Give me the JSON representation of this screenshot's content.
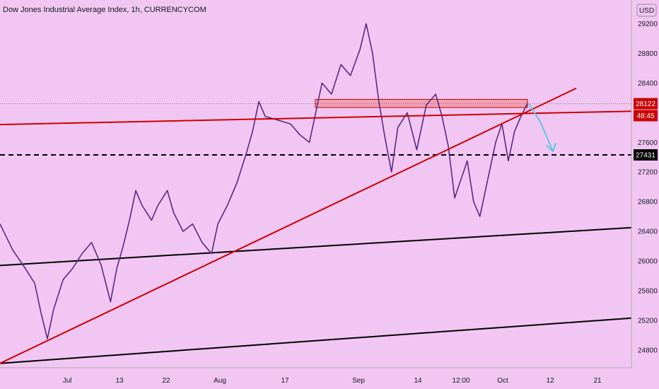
{
  "chart_data": {
    "type": "line",
    "title": "Dow Jones Industrial Average Index, 1h, CURRENCYCOM",
    "currency_label": "USD",
    "colors": {
      "background": "#f2c6f2",
      "price": "#5a2a82",
      "trendline": "#cc0000",
      "channel": "#000000",
      "zone_fill": "#f08080",
      "arrow": "#5bc8e8",
      "axis_border": "#aaaaaa"
    },
    "ylim": [
      24560,
      29520
    ],
    "y_ticks": [
      "29200",
      "28800",
      "28400",
      "28000",
      "27600",
      "27200",
      "26800",
      "26400",
      "26000",
      "25600",
      "25200",
      "24800"
    ],
    "x_ticks": [
      "Jul",
      "13",
      "22",
      "Aug",
      "17",
      "Sep",
      "14",
      "12:00",
      "Oct",
      "12",
      "21"
    ],
    "price_labels": [
      {
        "id": "current",
        "text": "28122",
        "value": 28122,
        "color": "#cc0000",
        "text_color": "#ffffff"
      },
      {
        "id": "countdown",
        "text": "48:45",
        "value": 27960,
        "color": "#cc0000",
        "text_color": "#ffffff"
      },
      {
        "id": "target",
        "text": "27431",
        "value": 27431,
        "color": "#000000",
        "text_color": "#ffffff"
      }
    ],
    "price_series": [
      {
        "x": 0.0,
        "y": 26500
      },
      {
        "x": 0.02,
        "y": 26150
      },
      {
        "x": 0.04,
        "y": 25900
      },
      {
        "x": 0.055,
        "y": 25700
      },
      {
        "x": 0.065,
        "y": 25300
      },
      {
        "x": 0.075,
        "y": 24950
      },
      {
        "x": 0.085,
        "y": 25350
      },
      {
        "x": 0.1,
        "y": 25750
      },
      {
        "x": 0.115,
        "y": 25900
      },
      {
        "x": 0.13,
        "y": 26100
      },
      {
        "x": 0.145,
        "y": 26250
      },
      {
        "x": 0.16,
        "y": 25950
      },
      {
        "x": 0.175,
        "y": 25450
      },
      {
        "x": 0.185,
        "y": 25900
      },
      {
        "x": 0.195,
        "y": 26200
      },
      {
        "x": 0.205,
        "y": 26550
      },
      {
        "x": 0.215,
        "y": 26950
      },
      {
        "x": 0.225,
        "y": 26750
      },
      {
        "x": 0.24,
        "y": 26550
      },
      {
        "x": 0.25,
        "y": 26750
      },
      {
        "x": 0.265,
        "y": 26950
      },
      {
        "x": 0.275,
        "y": 26650
      },
      {
        "x": 0.29,
        "y": 26400
      },
      {
        "x": 0.305,
        "y": 26500
      },
      {
        "x": 0.32,
        "y": 26250
      },
      {
        "x": 0.335,
        "y": 26100
      },
      {
        "x": 0.345,
        "y": 26500
      },
      {
        "x": 0.36,
        "y": 26750
      },
      {
        "x": 0.375,
        "y": 27050
      },
      {
        "x": 0.39,
        "y": 27450
      },
      {
        "x": 0.4,
        "y": 27750
      },
      {
        "x": 0.41,
        "y": 28150
      },
      {
        "x": 0.42,
        "y": 27950
      },
      {
        "x": 0.44,
        "y": 27900
      },
      {
        "x": 0.46,
        "y": 27850
      },
      {
        "x": 0.475,
        "y": 27700
      },
      {
        "x": 0.49,
        "y": 27600
      },
      {
        "x": 0.5,
        "y": 28000
      },
      {
        "x": 0.51,
        "y": 28400
      },
      {
        "x": 0.525,
        "y": 28250
      },
      {
        "x": 0.54,
        "y": 28650
      },
      {
        "x": 0.555,
        "y": 28500
      },
      {
        "x": 0.57,
        "y": 28850
      },
      {
        "x": 0.58,
        "y": 29200
      },
      {
        "x": 0.59,
        "y": 28800
      },
      {
        "x": 0.6,
        "y": 28150
      },
      {
        "x": 0.61,
        "y": 27650
      },
      {
        "x": 0.62,
        "y": 27200
      },
      {
        "x": 0.63,
        "y": 27800
      },
      {
        "x": 0.645,
        "y": 28000
      },
      {
        "x": 0.66,
        "y": 27500
      },
      {
        "x": 0.675,
        "y": 28100
      },
      {
        "x": 0.69,
        "y": 28250
      },
      {
        "x": 0.7,
        "y": 27950
      },
      {
        "x": 0.71,
        "y": 27550
      },
      {
        "x": 0.72,
        "y": 26850
      },
      {
        "x": 0.73,
        "y": 27100
      },
      {
        "x": 0.74,
        "y": 27350
      },
      {
        "x": 0.75,
        "y": 26800
      },
      {
        "x": 0.76,
        "y": 26600
      },
      {
        "x": 0.77,
        "y": 27000
      },
      {
        "x": 0.785,
        "y": 27600
      },
      {
        "x": 0.795,
        "y": 27850
      },
      {
        "x": 0.805,
        "y": 27350
      },
      {
        "x": 0.815,
        "y": 27750
      },
      {
        "x": 0.825,
        "y": 27950
      },
      {
        "x": 0.835,
        "y": 28122
      }
    ]
  }
}
